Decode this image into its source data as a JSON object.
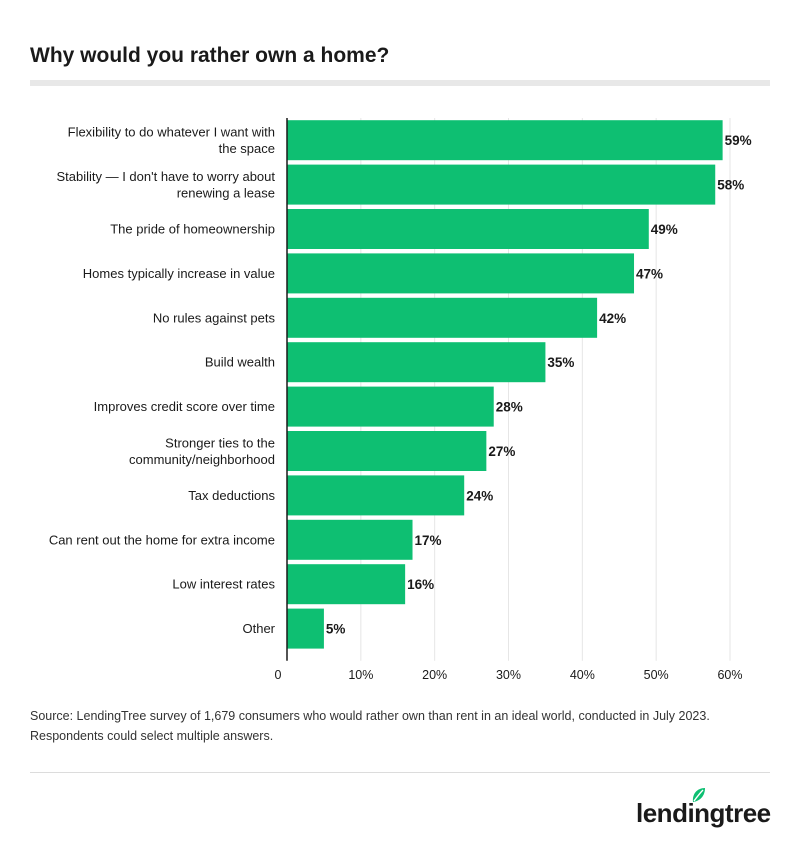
{
  "title": "Why would you rather own a home?",
  "chart_data": {
    "type": "bar",
    "orientation": "horizontal",
    "categories": [
      [
        "Flexibility to do whatever I want with",
        "the space"
      ],
      [
        "Stability — I don't have to worry about",
        "renewing a lease"
      ],
      [
        "The pride of homeownership"
      ],
      [
        "Homes typically increase in value"
      ],
      [
        "No rules against pets"
      ],
      [
        "Build wealth"
      ],
      [
        "Improves credit score over time"
      ],
      [
        "Stronger ties to the",
        "community/neighborhood"
      ],
      [
        "Tax deductions"
      ],
      [
        "Can rent out the home for extra income"
      ],
      [
        "Low interest rates"
      ],
      [
        "Other"
      ]
    ],
    "values": [
      59,
      58,
      49,
      47,
      42,
      35,
      28,
      27,
      24,
      17,
      16,
      5
    ],
    "value_labels": [
      "59%",
      "58%",
      "49%",
      "47%",
      "42%",
      "35%",
      "28%",
      "27%",
      "24%",
      "17%",
      "16%",
      "5%"
    ],
    "xlim": [
      0,
      60
    ],
    "xticks": [
      0,
      10,
      20,
      30,
      40,
      50,
      60
    ],
    "xtick_labels": [
      "0",
      "10%",
      "20%",
      "30%",
      "40%",
      "50%",
      "60%"
    ],
    "grid": true,
    "colors": {
      "bar": "#0ebf72",
      "grid": "#e6e6e6",
      "axis": "#1a1a1a"
    }
  },
  "source": "Source: LendingTree survey of 1,679 consumers who would rather own than rent in an ideal world, conducted in July 2023. Respondents could select multiple answers.",
  "logo": {
    "text": "lendingtree",
    "leaf_color": "#0ebf72",
    "icon": "leaf-icon"
  }
}
